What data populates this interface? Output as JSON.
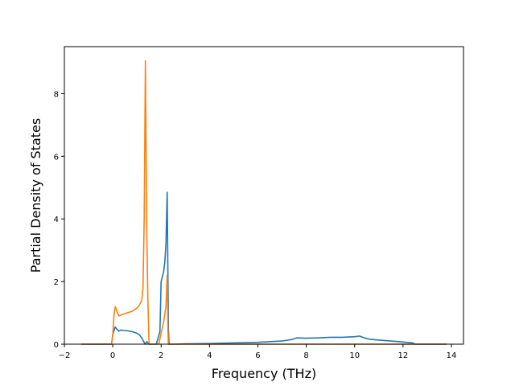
{
  "chart_data": {
    "type": "line",
    "title": "",
    "xlabel": "Frequency (THz)",
    "ylabel": "Partial Density of States",
    "xlim": [
      -2,
      14.5
    ],
    "ylim": [
      0,
      9.5
    ],
    "xticks": [
      -2,
      0,
      2,
      4,
      6,
      8,
      10,
      12,
      14
    ],
    "yticks": [
      0,
      2,
      4,
      6,
      8
    ],
    "grid": false,
    "legend": "none",
    "series": [
      {
        "color": "#1f77b4",
        "x": [
          -1.3,
          -0.05,
          0.0,
          0.1,
          0.15,
          0.25,
          0.35,
          0.45,
          0.6,
          0.8,
          1.0,
          1.1,
          1.2,
          1.3,
          1.35,
          1.4,
          1.45,
          1.5,
          1.55,
          1.6,
          1.8,
          1.95,
          2.0,
          2.1,
          2.15,
          2.2,
          2.25,
          2.3,
          2.33,
          2.38,
          2.5,
          3.0,
          4.0,
          5.0,
          6.0,
          7.0,
          7.4,
          7.6,
          8.0,
          8.5,
          9.0,
          9.5,
          10.0,
          10.2,
          10.4,
          10.6,
          11.0,
          11.5,
          12.0,
          12.4,
          12.5,
          13.0,
          13.8
        ],
        "y": [
          0,
          0,
          0.3,
          0.55,
          0.5,
          0.42,
          0.45,
          0.44,
          0.43,
          0.4,
          0.35,
          0.3,
          0.2,
          0.05,
          0.0,
          0.08,
          0.05,
          0.0,
          0.0,
          0.0,
          0.0,
          0.4,
          2.0,
          2.3,
          2.6,
          3.2,
          4.85,
          0.5,
          0.0,
          0.0,
          0.0,
          0.01,
          0.02,
          0.04,
          0.06,
          0.1,
          0.15,
          0.2,
          0.19,
          0.2,
          0.22,
          0.22,
          0.24,
          0.26,
          0.2,
          0.16,
          0.13,
          0.1,
          0.07,
          0.04,
          0.0,
          0.0,
          0.0
        ]
      },
      {
        "color": "#ff7f0e",
        "x": [
          -1.3,
          -0.05,
          0.0,
          0.05,
          0.1,
          0.15,
          0.25,
          0.4,
          0.6,
          0.8,
          1.0,
          1.1,
          1.2,
          1.25,
          1.3,
          1.35,
          1.4,
          1.45,
          1.5,
          1.6,
          1.7,
          1.9,
          2.0,
          2.1,
          2.2,
          2.25,
          2.28,
          2.3,
          2.35,
          2.5,
          4.0,
          6.0,
          8.0,
          10.0,
          12.0,
          13.8
        ],
        "y": [
          0,
          0,
          0.3,
          0.9,
          1.2,
          1.1,
          0.9,
          0.95,
          1.0,
          1.05,
          1.15,
          1.25,
          1.4,
          1.8,
          4.0,
          9.05,
          4.0,
          1.5,
          0.0,
          0.0,
          0.0,
          0.0,
          0.35,
          0.7,
          1.2,
          2.2,
          0.5,
          0.0,
          0.0,
          0.0,
          0.0,
          0.0,
          0.0,
          0.0,
          0.0,
          0.0
        ]
      }
    ]
  }
}
